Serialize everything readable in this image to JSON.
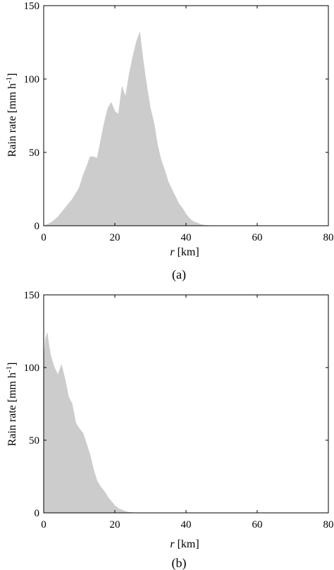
{
  "chart_data": [
    {
      "type": "area",
      "panel_label": "(a)",
      "xlabel_italic": "r",
      "xlabel_rest": " [km]",
      "ylabel": "Rain rate [mm h",
      "ylabel_sup": "-1",
      "ylabel_end": "]",
      "xlim": [
        0,
        80
      ],
      "ylim": [
        0,
        150
      ],
      "x_ticks": [
        0,
        20,
        40,
        60,
        80
      ],
      "x_tick_labels": [
        "0",
        "20",
        "40",
        "60",
        "80"
      ],
      "y_ticks": [
        0,
        50,
        100,
        150
      ],
      "y_tick_labels": [
        "0",
        "50",
        "100",
        "150"
      ],
      "fill_color": "#cccccc",
      "grid": false,
      "x": [
        0,
        2,
        4,
        6,
        8,
        10,
        11,
        12,
        13,
        14,
        15,
        16,
        17,
        18,
        19,
        20,
        21,
        22,
        23,
        24,
        25,
        26,
        27,
        28,
        29,
        30,
        31,
        32,
        33,
        34,
        35,
        36,
        37,
        38,
        39,
        40,
        41,
        42,
        43,
        44,
        45,
        46,
        50,
        60,
        70,
        80
      ],
      "values": [
        0,
        2,
        6,
        12,
        18,
        26,
        34,
        40,
        47,
        47,
        46,
        58,
        70,
        80,
        84,
        78,
        76,
        95,
        88,
        103,
        115,
        125,
        132,
        112,
        95,
        80,
        70,
        55,
        45,
        38,
        30,
        25,
        20,
        15,
        12,
        8,
        5,
        3,
        2,
        1,
        0.5,
        0.2,
        0,
        0,
        0,
        0
      ]
    },
    {
      "type": "area",
      "panel_label": "(b)",
      "xlabel_italic": "r",
      "xlabel_rest": " [km]",
      "ylabel": "Rain rate [mm h",
      "ylabel_sup": "-1",
      "ylabel_end": "]",
      "xlim": [
        0,
        80
      ],
      "ylim": [
        0,
        150
      ],
      "x_ticks": [
        0,
        20,
        40,
        60,
        80
      ],
      "x_tick_labels": [
        "0",
        "20",
        "40",
        "60",
        "80"
      ],
      "y_ticks": [
        0,
        50,
        100,
        150
      ],
      "y_tick_labels": [
        "0",
        "50",
        "100",
        "150"
      ],
      "fill_color": "#cccccc",
      "grid": false,
      "x": [
        0,
        0.5,
        1,
        1.5,
        2,
        3,
        4,
        5,
        6,
        7,
        8,
        9,
        10,
        11,
        12,
        13,
        14,
        15,
        16,
        17,
        18,
        19,
        20,
        21,
        22,
        23,
        24,
        25,
        26,
        30,
        40,
        60,
        80
      ],
      "values": [
        105,
        120,
        124,
        115,
        108,
        100,
        95,
        102,
        92,
        80,
        75,
        62,
        58,
        55,
        48,
        40,
        30,
        22,
        18,
        15,
        11,
        8,
        5,
        3,
        2,
        1,
        0.5,
        0.2,
        0,
        0,
        0,
        0,
        0
      ]
    }
  ]
}
